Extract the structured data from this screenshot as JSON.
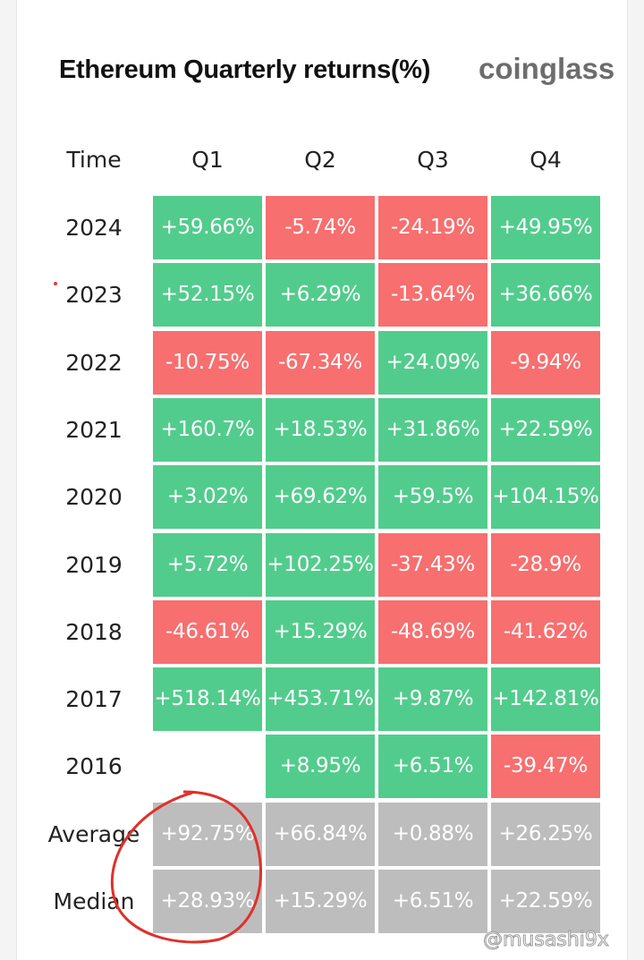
{
  "header": {
    "title": "Ethereum Quarterly returns(%)",
    "brand": "coinglass"
  },
  "watermark": "@musashi9x",
  "colors": {
    "positive": "#52cc8c",
    "negative": "#f76f6f",
    "summary": "#bdbdbd",
    "annotation": "#e0302a"
  },
  "chart_data": {
    "type": "heatmap",
    "title": "Ethereum Quarterly returns(%)",
    "row_header": "Time",
    "columns": [
      "Q1",
      "Q2",
      "Q3",
      "Q4"
    ],
    "rows": [
      {
        "label": "2024",
        "values": [
          "+59.66%",
          "-5.74%",
          "-24.19%",
          "+49.95%"
        ]
      },
      {
        "label": "2023",
        "values": [
          "+52.15%",
          "+6.29%",
          "-13.64%",
          "+36.66%"
        ]
      },
      {
        "label": "2022",
        "values": [
          "-10.75%",
          "-67.34%",
          "+24.09%",
          "-9.94%"
        ]
      },
      {
        "label": "2021",
        "values": [
          "+160.7%",
          "+18.53%",
          "+31.86%",
          "+22.59%"
        ]
      },
      {
        "label": "2020",
        "values": [
          "+3.02%",
          "+69.62%",
          "+59.5%",
          "+104.15%"
        ]
      },
      {
        "label": "2019",
        "values": [
          "+5.72%",
          "+102.25%",
          "-37.43%",
          "-28.9%"
        ]
      },
      {
        "label": "2018",
        "values": [
          "-46.61%",
          "+15.29%",
          "-48.69%",
          "-41.62%"
        ]
      },
      {
        "label": "2017",
        "values": [
          "+518.14%",
          "+453.71%",
          "+9.87%",
          "+142.81%"
        ]
      },
      {
        "label": "2016",
        "values": [
          null,
          "+8.95%",
          "+6.51%",
          "-39.47%"
        ]
      }
    ],
    "summary_rows": [
      {
        "label": "Average",
        "values": [
          "+92.75%",
          "+66.84%",
          "+0.88%",
          "+26.25%"
        ]
      },
      {
        "label": "Median",
        "values": [
          "+28.93%",
          "+15.29%",
          "+6.51%",
          "+22.59%"
        ]
      }
    ],
    "annotation": "red hand-drawn circle around Q1 Average and Median"
  }
}
